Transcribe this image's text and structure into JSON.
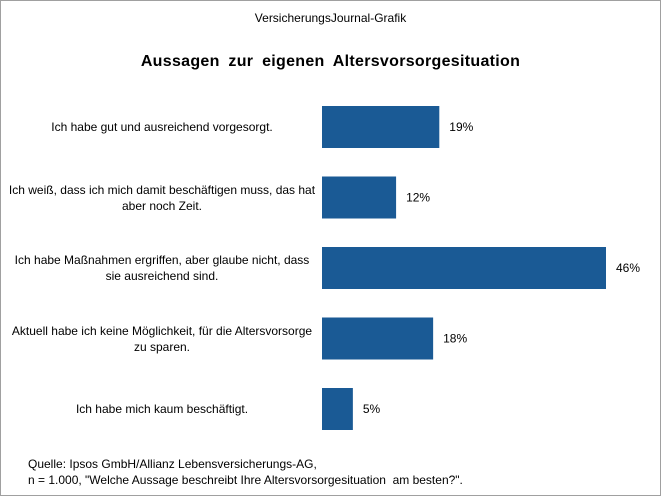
{
  "header": "VersicherungsJournal-Grafik",
  "chart_data": {
    "type": "bar",
    "orientation": "horizontal",
    "title": "Aussagen zur eigenen Altersvorsorgesituation",
    "categories": [
      "Ich habe gut und ausreichend vorgesorgt.",
      "Ich weiß, dass ich mich damit beschäftigen muss, das hat aber noch Zeit.",
      "Ich habe Maßnahmen ergriffen, aber glaube nicht, dass sie ausreichend sind.",
      "Aktuell habe ich keine Möglichkeit, für die Altersvorsorge zu sparen.",
      "Ich habe mich kaum beschäftigt."
    ],
    "values": [
      19,
      12,
      46,
      18,
      5
    ],
    "value_labels": [
      "19%",
      "12%",
      "46%",
      "18%",
      "5%"
    ],
    "color": "#1a5a95"
  },
  "source": [
    "Quelle: Ipsos GmbH/Allianz Lebensversicherungs-AG,",
    "n = 1.000, \"Welche Aussage beschreibt Ihre Altersvorsorgesituation  am besten?\"."
  ]
}
